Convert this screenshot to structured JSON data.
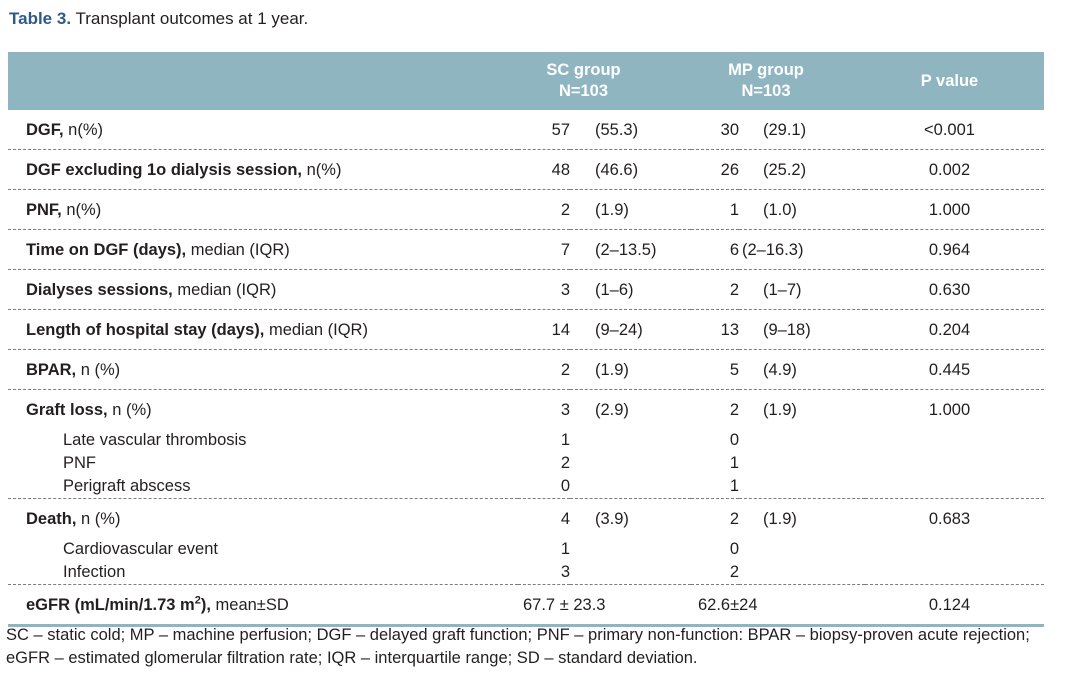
{
  "caption": {
    "label": "Table 3.",
    "text": "Transplant outcomes at 1 year."
  },
  "headers": {
    "sc_line1": "SC group",
    "sc_line2": "N=103",
    "mp_line1": "MP group",
    "mp_line2": "N=103",
    "p": "P value"
  },
  "rows": [
    {
      "bold": "DGF,",
      "rest": " n(%)",
      "sc_n": "57",
      "sc_p": "(55.3)",
      "mp_n": "30",
      "mp_p": "(29.1)",
      "p": "<0.001"
    },
    {
      "bold": "DGF excluding 1o dialysis session,",
      "rest": " n(%)",
      "sc_n": "48",
      "sc_p": "(46.6)",
      "mp_n": "26",
      "mp_p": "(25.2)",
      "p": "0.002"
    },
    {
      "bold": "PNF,",
      "rest": " n(%)",
      "sc_n": "2",
      "sc_p": "(1.9)",
      "mp_n": "1",
      "mp_p": "(1.0)",
      "p": "1.000"
    },
    {
      "bold": "Time on DGF (days),",
      "rest": " median (IQR)",
      "sc_n": "7",
      "sc_p": "(2–13.5)",
      "mp_n": "6",
      "mp_p": "(2–16.3)",
      "p": "0.964"
    },
    {
      "bold": "Dialyses sessions,",
      "rest": " median (IQR)",
      "sc_n": "3",
      "sc_p": "(1–6)",
      "mp_n": "2",
      "mp_p": "(1–7)",
      "p": "0.630"
    },
    {
      "bold": "Length of hospital stay (days),",
      "rest": " median (IQR)",
      "sc_n": "14",
      "sc_p": "(9–24)",
      "mp_n": "13",
      "mp_p": "(9–18)",
      "p": "0.204"
    },
    {
      "bold": "BPAR,",
      "rest": " n (%)",
      "sc_n": "2",
      "sc_p": "(1.9)",
      "mp_n": "5",
      "mp_p": "(4.9)",
      "p": "0.445"
    }
  ],
  "graft": {
    "bold": "Graft loss,",
    "rest": " n (%)",
    "sc_n": "3",
    "sc_p": "(2.9)",
    "mp_n": "2",
    "mp_p": "(1.9)",
    "p": "1.000",
    "subs": [
      {
        "label": "Late vascular thrombosis",
        "sc": "1",
        "mp": "0"
      },
      {
        "label": "PNF",
        "sc": "2",
        "mp": "1"
      },
      {
        "label": "Perigraft abscess",
        "sc": "0",
        "mp": "1"
      }
    ]
  },
  "death": {
    "bold": "Death,",
    "rest": " n (%)",
    "sc_n": "4",
    "sc_p": "(3.9)",
    "mp_n": "2",
    "mp_p": "(1.9)",
    "p": "0.683",
    "subs": [
      {
        "label": "Cardiovascular event",
        "sc": "1",
        "mp": "0"
      },
      {
        "label": "Infection",
        "sc": "3",
        "mp": "2"
      }
    ]
  },
  "egfr": {
    "bold_pre": "eGFR (mL/min/1.73 m",
    "sup": "2",
    "bold_post": "),",
    "rest": " mean±SD",
    "sc": "67.7 ± 23.3",
    "mp": "62.6±24",
    "p": "0.124"
  },
  "footnote": "SC – static cold; MP – machine perfusion; DGF – delayed graft function; PNF – primary non-function: BPAR – biopsy-proven acute rejection; eGFR – estimated glomerular filtration rate; IQR – interquartile range; SD – standard deviation."
}
